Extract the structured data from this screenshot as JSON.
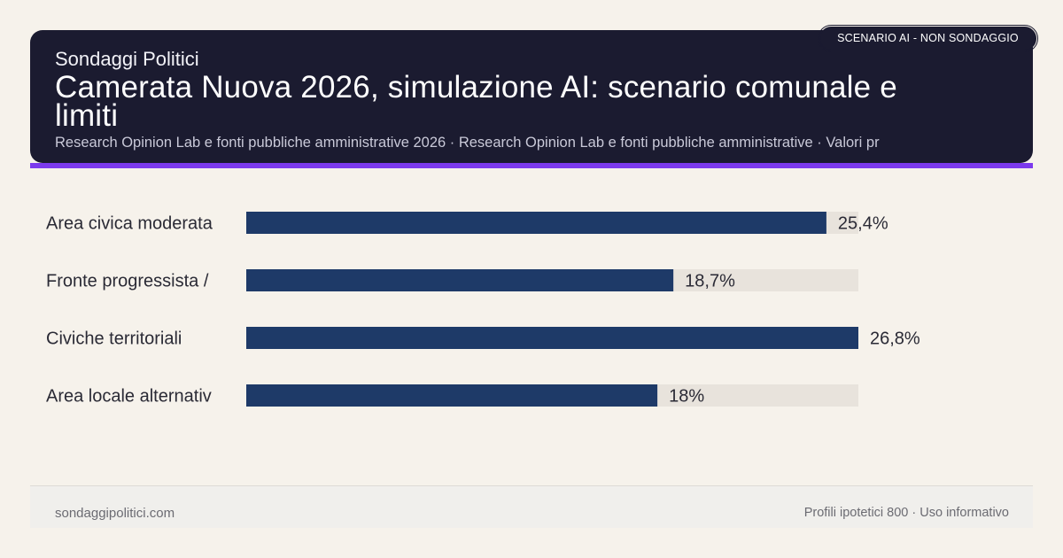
{
  "header": {
    "brand": "Sondaggi Politici",
    "title": "Camerata Nuova 2026, simulazione AI: scenario comunale e limiti",
    "subtitle": "Research Opinion Lab e fonti pubbliche amministrative 2026 · Research Opinion Lab e fonti pubbliche amministrative · Valori pr",
    "badge": "SCENARIO AI - NON SONDAGGIO"
  },
  "colors": {
    "header_bg": "#1b1b30",
    "accent": "#7c3aed",
    "bar": "#1e3a68",
    "track": "#e8e3dc",
    "background": "#f6f2eb"
  },
  "chart_data": {
    "type": "bar",
    "orientation": "horizontal",
    "categories": [
      "Area civica moderata",
      "Fronte progressista /",
      "Civiche territoriali",
      "Area locale alternativ"
    ],
    "values": [
      25.4,
      18.7,
      26.8,
      18
    ],
    "value_labels": [
      "25,4%",
      "18,7%",
      "26,8%",
      "18%"
    ],
    "xlim": [
      0,
      26.8
    ],
    "grid": false
  },
  "footer": {
    "site": "sondaggipolitici.com",
    "note": "Profili ipotetici 800 · Uso informativo"
  }
}
